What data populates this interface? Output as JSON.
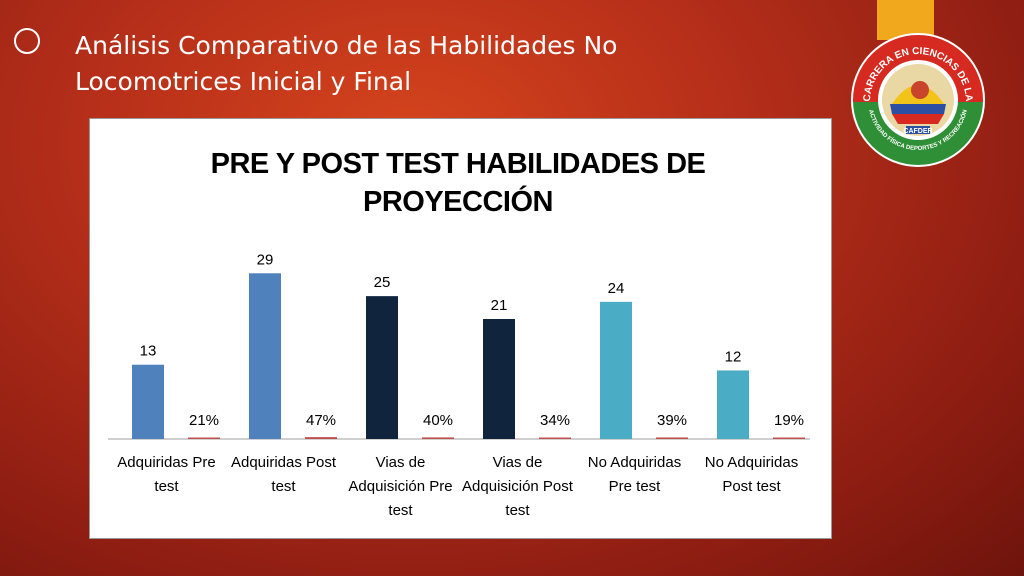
{
  "slide": {
    "title_line1": "Análisis Comparativo de las Habilidades No",
    "title_line2": "Locomotrices  Inicial y Final"
  },
  "logo": {
    "top_text": "CARRERA EN CIENCIAS DE LA",
    "bottom_text": "ACTIVIDAD FÍSICA DEPORTES Y RECREACIÓN",
    "center_text": "CAFDER"
  },
  "chart_data": {
    "type": "bar",
    "title": [
      "PRE Y POST TEST HABILIDADES DE",
      "PROYECCIÓN"
    ],
    "categories": [
      [
        "Adquiridas Pre",
        "test"
      ],
      [
        "Adquiridas Post",
        "test"
      ],
      [
        "Vias de",
        "Adquisición Pre",
        "test"
      ],
      [
        "Vias de",
        "Adquisición Post",
        "test"
      ],
      [
        "No Adquiridas",
        "Pre test"
      ],
      [
        "No Adquiridas",
        "Post test"
      ]
    ],
    "series": [
      {
        "values": [
          13,
          29,
          25,
          21,
          24,
          12
        ],
        "labels": [
          "13",
          "29",
          "25",
          "21",
          "24",
          "12"
        ],
        "colors": [
          "#4f81bd",
          "#4f81bd",
          "#10243e",
          "#10243e",
          "#4bacc6",
          "#4bacc6"
        ]
      },
      {
        "values": [
          0.21,
          0.47,
          0.4,
          0.34,
          0.39,
          0.19
        ],
        "labels": [
          "21%",
          "47%",
          "40%",
          "34%",
          "39%",
          "19%"
        ],
        "color": "#c0504d"
      }
    ],
    "ylim": [
      0,
      33
    ]
  }
}
